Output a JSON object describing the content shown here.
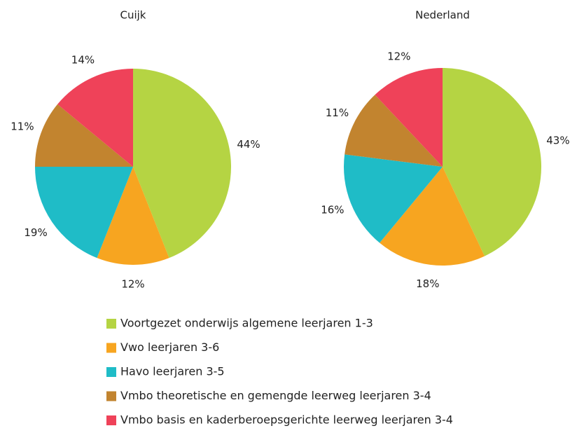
{
  "categories": [
    "Voortgezet onderwijs algemene leerjaren 1-3",
    "Vwo leerjaren 3-6",
    "Havo leerjaren 3-5",
    "Vmbo theoretische en gemengde leerweg leerjaren 3-4",
    "Vmbo basis en kaderberoepsgerichte leerweg leerjaren 3-4"
  ],
  "colors": [
    "#b5d443",
    "#f7a520",
    "#1fbcc7",
    "#c2842f",
    "#ef4259"
  ],
  "chart_data": [
    {
      "type": "pie",
      "title": "Cuijk",
      "values": [
        44,
        12,
        19,
        11,
        14
      ],
      "value_labels": [
        "44%",
        "12%",
        "19%",
        "11%",
        "14%"
      ]
    },
    {
      "type": "pie",
      "title": "Nederland",
      "values": [
        43,
        18,
        16,
        11,
        12
      ],
      "value_labels": [
        "43%",
        "18%",
        "16%",
        "11%",
        "12%"
      ]
    }
  ]
}
